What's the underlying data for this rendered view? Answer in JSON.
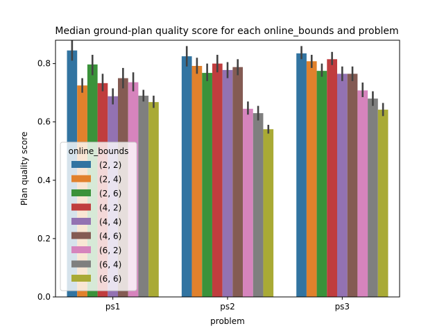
{
  "chart_data": {
    "type": "bar",
    "title": "Median ground-plan quality score for each online_bounds and problem",
    "xlabel": "problem",
    "ylabel": "Plan quality score",
    "categories": [
      "ps1",
      "ps2",
      "ps3"
    ],
    "ylim": [
      0,
      0.88
    ],
    "yticks": [
      0.0,
      0.2,
      0.4,
      0.6,
      0.8
    ],
    "yticklabels": [
      "0.0",
      "0.2",
      "0.4",
      "0.6",
      "0.8"
    ],
    "grid": false,
    "legend": {
      "title": "online_bounds",
      "position": "center-left"
    },
    "series": [
      {
        "name": "(2, 2)",
        "color": "#3274a1",
        "values": [
          0.845,
          0.825,
          0.835
        ],
        "ci_low": [
          0.81,
          0.79,
          0.815
        ],
        "ci_high": [
          0.88,
          0.86,
          0.86
        ]
      },
      {
        "name": "(2, 4)",
        "color": "#e1812c",
        "values": [
          0.725,
          0.792,
          0.808
        ],
        "ci_low": [
          0.7,
          0.765,
          0.785
        ],
        "ci_high": [
          0.75,
          0.82,
          0.83
        ]
      },
      {
        "name": "(2, 6)",
        "color": "#3a923a",
        "values": [
          0.797,
          0.768,
          0.775
        ],
        "ci_low": [
          0.76,
          0.74,
          0.755
        ],
        "ci_high": [
          0.83,
          0.8,
          0.8
        ]
      },
      {
        "name": "(4, 2)",
        "color": "#c03d3e",
        "values": [
          0.733,
          0.8,
          0.815
        ],
        "ci_low": [
          0.705,
          0.77,
          0.795
        ],
        "ci_high": [
          0.765,
          0.83,
          0.84
        ]
      },
      {
        "name": "(4, 4)",
        "color": "#9372b2",
        "values": [
          0.688,
          0.778,
          0.765
        ],
        "ci_low": [
          0.66,
          0.75,
          0.74
        ],
        "ci_high": [
          0.715,
          0.805,
          0.79
        ]
      },
      {
        "name": "(4, 6)",
        "color": "#845b53",
        "values": [
          0.75,
          0.788,
          0.765
        ],
        "ci_low": [
          0.715,
          0.76,
          0.74
        ],
        "ci_high": [
          0.785,
          0.815,
          0.79
        ]
      },
      {
        "name": "(6, 2)",
        "color": "#d684bd",
        "values": [
          0.736,
          0.645,
          0.708
        ],
        "ci_low": [
          0.705,
          0.625,
          0.685
        ],
        "ci_high": [
          0.77,
          0.67,
          0.735
        ]
      },
      {
        "name": "(6, 4)",
        "color": "#7f7f7f",
        "values": [
          0.69,
          0.63,
          0.68
        ],
        "ci_low": [
          0.67,
          0.605,
          0.655
        ],
        "ci_high": [
          0.71,
          0.655,
          0.705
        ]
      },
      {
        "name": "(6, 6)",
        "color": "#a9aa35",
        "values": [
          0.668,
          0.575,
          0.642
        ],
        "ci_low": [
          0.648,
          0.56,
          0.62
        ],
        "ci_high": [
          0.69,
          0.59,
          0.665
        ]
      }
    ]
  }
}
